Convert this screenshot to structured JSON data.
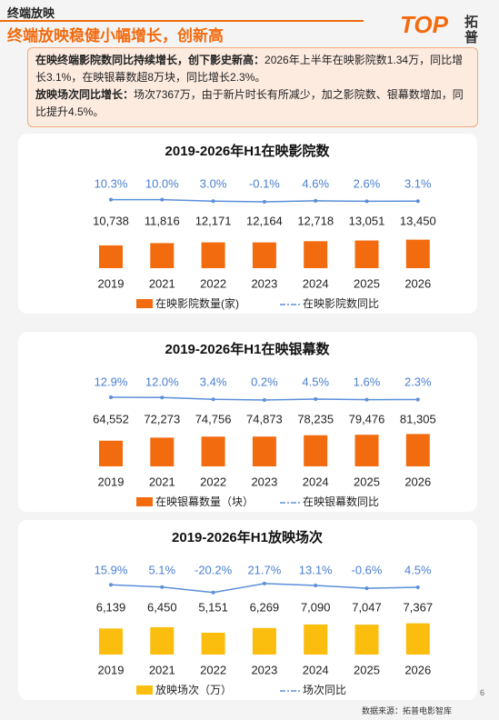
{
  "header": {
    "section": "终端放映",
    "title": "终端放映稳健小幅增长，创新高",
    "logo": "TOP",
    "logo_text": "拓普"
  },
  "summary": [
    {
      "lead": "在映终端影院数同比持续增长，创下影史新高：",
      "text": "2026年上半年在映影院数1.34万，同比增长3.1%，在映银幕数超8万块，同比增长2.3%。"
    },
    {
      "lead": "放映场次同比增长：",
      "text": "场次7367万，由于新片时长有所减少，加之影院数、银幕数增加，同比提升4.5%。"
    }
  ],
  "chart_data": [
    {
      "type": "bar",
      "title": "2019-2026年H1在映影院数",
      "categories": [
        "2019",
        "2021",
        "2022",
        "2023",
        "2024",
        "2025",
        "2026"
      ],
      "ylim": [
        0,
        60000
      ],
      "y2lim": [
        -300,
        300
      ],
      "series": [
        {
          "name": "在映影院数量(家)",
          "color": "#f26b0f",
          "values": [
            10738,
            11816,
            12171,
            12164,
            12718,
            13051,
            13450
          ],
          "value_labels": [
            "10,738",
            "11,816",
            "12,171",
            "12,164",
            "12,718",
            "13,051",
            "13,450"
          ]
        },
        {
          "name": "在映影院数同比",
          "color": "#5b8fd9",
          "axis": "y2",
          "values": [
            10.3,
            10,
            3,
            -0.1,
            4.6,
            2.6,
            3.1
          ],
          "value_labels": [
            "10.3%",
            "10.0%",
            "3.0%",
            "-0.1%",
            "4.6%",
            "2.6%",
            "3.1%"
          ]
        }
      ]
    },
    {
      "type": "bar",
      "title": "2019-2026年H1在映银幕数",
      "categories": [
        "2019",
        "2021",
        "2022",
        "2023",
        "2024",
        "2025",
        "2026"
      ],
      "ylim": [
        0,
        320000
      ],
      "y2lim": [
        -300,
        300
      ],
      "series": [
        {
          "name": "在映银幕数量（块）",
          "color": "#f26b0f",
          "values": [
            64552,
            72273,
            74756,
            74873,
            78235,
            79476,
            81305
          ],
          "value_labels": [
            "64,552",
            "72,273",
            "74,756",
            "74,873",
            "78,235",
            "79,476",
            "81,305"
          ]
        },
        {
          "name": "在映银幕数同比",
          "color": "#5b8fd9",
          "axis": "y2",
          "values": [
            12.9,
            12,
            3.4,
            0.2,
            4.5,
            1.6,
            2.3
          ],
          "value_labels": [
            "12.9%",
            "12.0%",
            "3.4%",
            "0.2%",
            "4.5%",
            "1.6%",
            "2.3%"
          ]
        }
      ]
    },
    {
      "type": "bar",
      "title": "2019-2026年H1放映场次",
      "categories": [
        "2019",
        "2021",
        "2022",
        "2023",
        "2024",
        "2025",
        "2026"
      ],
      "ylim": [
        0,
        30000
      ],
      "y2lim": [
        -300,
        300
      ],
      "series": [
        {
          "name": "放映场次（万）",
          "color": "#fbbd0e",
          "values": [
            6139,
            6450,
            5151,
            6269,
            7090,
            7047,
            7367
          ],
          "value_labels": [
            "6,139",
            "6,450",
            "5,151",
            "6,269",
            "7,090",
            "7,047",
            "7,367"
          ]
        },
        {
          "name": "场次同比",
          "color": "#5b8fd9",
          "axis": "y2",
          "values": [
            15.9,
            5.1,
            -20.2,
            21.7,
            13.1,
            -0.6,
            4.5
          ],
          "value_labels": [
            "15.9%",
            "5.1%",
            "-20.2%",
            "21.7%",
            "13.1%",
            "-0.6%",
            "4.5%"
          ]
        }
      ]
    }
  ],
  "footer": {
    "source": "数据来源：拓普电影智库",
    "page": "6"
  }
}
